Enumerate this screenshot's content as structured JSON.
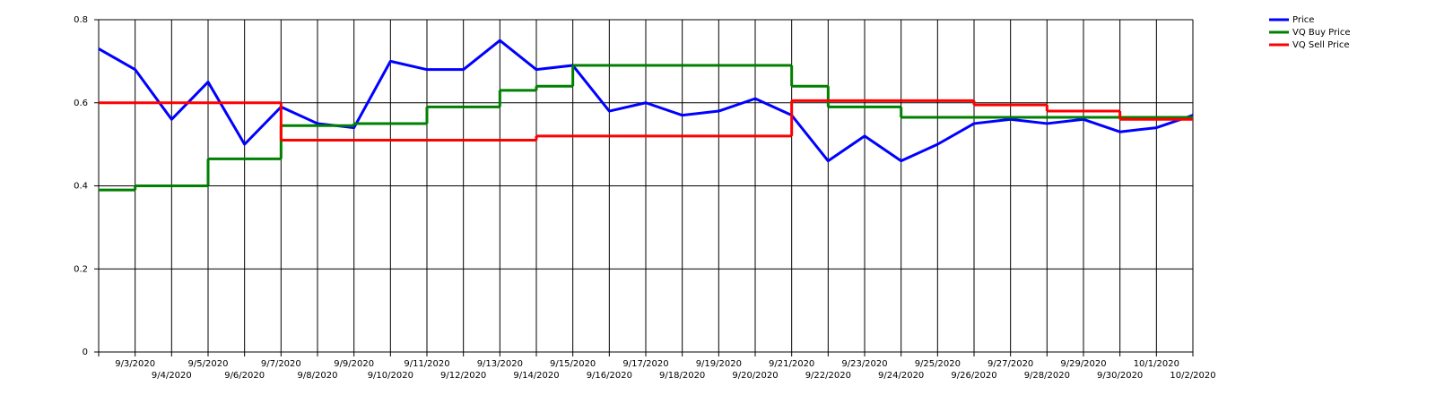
{
  "chart_data": {
    "type": "line",
    "categories": [
      null,
      "9/3/2020",
      "9/4/2020",
      "9/5/2020",
      "9/6/2020",
      "9/7/2020",
      "9/8/2020",
      "9/9/2020",
      "9/10/2020",
      "9/11/2020",
      "9/12/2020",
      "9/13/2020",
      "9/14/2020",
      "9/15/2020",
      "9/16/2020",
      "9/17/2020",
      "9/18/2020",
      "9/19/2020",
      "9/20/2020",
      "9/21/2020",
      "9/22/2020",
      "9/23/2020",
      "9/24/2020",
      "9/25/2020",
      "9/26/2020",
      "9/27/2020",
      "9/28/2020",
      "9/29/2020",
      "9/30/2020",
      "10/1/2020",
      "10/2/2020"
    ],
    "series": [
      {
        "name": "Price",
        "color": "#0000ff",
        "step": false,
        "values": [
          0.73,
          0.68,
          0.56,
          0.65,
          0.5,
          0.59,
          0.55,
          0.54,
          0.7,
          0.68,
          0.68,
          0.75,
          0.68,
          0.69,
          0.58,
          0.6,
          0.57,
          0.58,
          0.61,
          0.57,
          0.46,
          0.52,
          0.46,
          0.5,
          0.55,
          0.56,
          0.55,
          0.56,
          0.53,
          0.54,
          0.57
        ]
      },
      {
        "name": "VQ Buy Price",
        "color": "#008000",
        "step": true,
        "values": [
          0.39,
          0.4,
          0.4,
          0.465,
          0.465,
          0.545,
          0.545,
          0.55,
          0.55,
          0.59,
          0.59,
          0.63,
          0.64,
          0.69,
          0.69,
          0.69,
          0.69,
          0.69,
          0.69,
          0.64,
          0.59,
          0.59,
          0.565,
          0.565,
          0.565,
          0.565,
          0.565,
          0.565,
          0.565,
          0.565,
          0.565
        ]
      },
      {
        "name": "VQ Sell Price",
        "color": "#ff0000",
        "step": true,
        "values": [
          0.6,
          0.6,
          0.6,
          0.6,
          0.6,
          0.51,
          0.51,
          0.51,
          0.51,
          0.51,
          0.51,
          0.51,
          0.52,
          0.52,
          0.52,
          0.52,
          0.52,
          0.52,
          0.52,
          0.605,
          0.605,
          0.605,
          0.605,
          0.605,
          0.595,
          0.595,
          0.58,
          0.58,
          0.56,
          0.56,
          0.56
        ]
      }
    ],
    "ylim": [
      0,
      0.8
    ],
    "yticks": [
      0,
      0.2,
      0.4,
      0.6,
      0.8
    ],
    "grid": true,
    "legend": "top-right"
  }
}
